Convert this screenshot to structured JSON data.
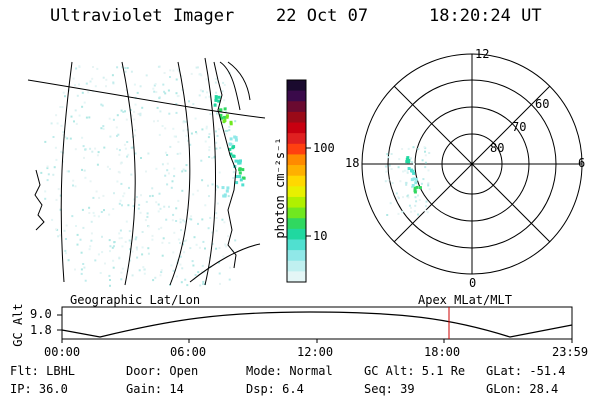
{
  "header": {
    "title": "Ultraviolet Imager",
    "date": "22 Oct 07",
    "time": "18:20:24 UT"
  },
  "colorbar": {
    "label": "photon cm⁻²s⁻¹",
    "ticks": [
      "100",
      "10"
    ],
    "colors": [
      "#1a0a2e",
      "#3a0a4a",
      "#6a0a30",
      "#9a0a18",
      "#c80010",
      "#e02020",
      "#ff4010",
      "#ff8a00",
      "#ffb000",
      "#ffd800",
      "#e8f000",
      "#b0f000",
      "#70e820",
      "#30d860",
      "#20d8a0",
      "#50e0d0",
      "#90e8e8",
      "#c0f0f0",
      "#e4f6f6"
    ]
  },
  "polar": {
    "labels": {
      "top": "12",
      "bottom": "0",
      "left": "18",
      "right": "6"
    },
    "rings": [
      "60",
      "70",
      "80"
    ]
  },
  "timeline": {
    "left_label": "Geographic Lat/Lon",
    "right_label": "Apex MLat/MLT",
    "axis_name": "GC Alt",
    "y_max": "9.0",
    "y_min": "1.8",
    "x_ticks": [
      "00:00",
      "06:00",
      "12:00",
      "18:00",
      "23:59"
    ],
    "marker_color": "#cc0000"
  },
  "info": {
    "filter": "Flt: LBHL",
    "ip": "IP: 36.0",
    "door": "Door: Open",
    "gain": "Gain: 14",
    "mode": "Mode: Normal",
    "dsp": "Dsp:    6.4",
    "gc_alt": "GC Alt: 5.1 Re",
    "seq": "Seq: 39",
    "glat": "GLat: -51.4",
    "glon": "GLon:  28.4"
  }
}
